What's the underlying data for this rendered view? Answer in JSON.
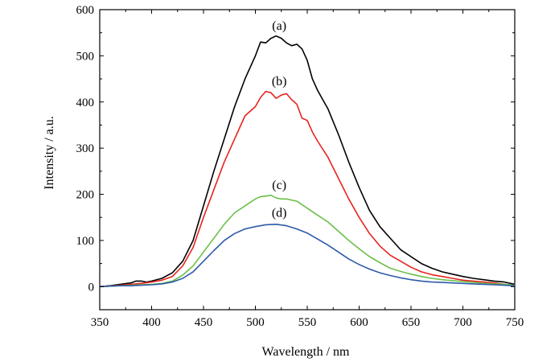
{
  "chart_data": {
    "type": "line",
    "title": "",
    "xlabel": "Wavelength / nm",
    "ylabel": "Intensity / a.u.",
    "xlim": [
      350,
      750
    ],
    "ylim": [
      -50,
      600
    ],
    "x_ticks": [
      350,
      400,
      450,
      500,
      550,
      600,
      650,
      700,
      750
    ],
    "y_ticks": [
      0,
      100,
      200,
      300,
      400,
      500,
      600
    ],
    "grid": false,
    "legend": "none",
    "annotations": [
      {
        "text": "(a)",
        "x": 523,
        "y": 565
      },
      {
        "text": "(b)",
        "x": 523,
        "y": 445
      },
      {
        "text": "(c)",
        "x": 523,
        "y": 220
      },
      {
        "text": "(d)",
        "x": 523,
        "y": 160
      }
    ],
    "series": [
      {
        "color": "#000000",
        "x": [
          350,
          360,
          370,
          380,
          385,
          390,
          395,
          400,
          410,
          420,
          430,
          440,
          450,
          460,
          470,
          480,
          490,
          500,
          505,
          510,
          515,
          520,
          525,
          530,
          535,
          540,
          545,
          550,
          555,
          560,
          565,
          570,
          580,
          590,
          600,
          610,
          620,
          630,
          640,
          650,
          660,
          670,
          680,
          690,
          700,
          710,
          720,
          730,
          740,
          750
        ],
        "y": [
          0,
          2,
          5,
          8,
          12,
          12,
          10,
          12,
          18,
          30,
          55,
          100,
          175,
          250,
          320,
          390,
          450,
          500,
          530,
          528,
          538,
          543,
          538,
          528,
          522,
          525,
          515,
          490,
          450,
          425,
          405,
          385,
          330,
          270,
          215,
          165,
          130,
          105,
          80,
          65,
          50,
          40,
          32,
          27,
          22,
          18,
          15,
          12,
          10,
          5
        ]
      },
      {
        "color": "#e8231e",
        "x": [
          350,
          360,
          370,
          380,
          390,
          400,
          410,
          420,
          430,
          440,
          450,
          460,
          470,
          480,
          490,
          500,
          505,
          510,
          515,
          520,
          525,
          530,
          535,
          540,
          545,
          550,
          555,
          560,
          570,
          580,
          590,
          600,
          610,
          620,
          630,
          640,
          650,
          660,
          670,
          680,
          690,
          700,
          710,
          720,
          730,
          740,
          750
        ],
        "y": [
          0,
          1,
          3,
          5,
          7,
          10,
          14,
          22,
          45,
          85,
          150,
          210,
          270,
          320,
          370,
          390,
          410,
          423,
          420,
          408,
          415,
          418,
          405,
          395,
          365,
          360,
          335,
          315,
          280,
          235,
          190,
          150,
          115,
          88,
          68,
          55,
          42,
          32,
          26,
          22,
          18,
          14,
          12,
          10,
          8,
          5,
          3
        ]
      },
      {
        "color": "#6dbf4b",
        "x": [
          350,
          360,
          370,
          380,
          390,
          400,
          410,
          420,
          430,
          440,
          450,
          460,
          470,
          480,
          490,
          500,
          505,
          510,
          515,
          520,
          525,
          530,
          540,
          550,
          560,
          570,
          580,
          590,
          600,
          610,
          620,
          630,
          640,
          650,
          660,
          670,
          680,
          690,
          700,
          710,
          720,
          730,
          740,
          750
        ],
        "y": [
          0,
          1,
          2,
          3,
          4,
          5,
          7,
          12,
          25,
          45,
          75,
          105,
          135,
          160,
          175,
          190,
          195,
          196,
          198,
          192,
          190,
          190,
          185,
          170,
          155,
          140,
          120,
          100,
          82,
          65,
          52,
          40,
          33,
          27,
          22,
          18,
          15,
          13,
          11,
          9,
          7,
          6,
          5,
          3
        ]
      },
      {
        "color": "#2c5aa8",
        "x": [
          350,
          360,
          370,
          380,
          390,
          400,
          410,
          420,
          430,
          440,
          450,
          460,
          470,
          480,
          490,
          500,
          510,
          520,
          530,
          540,
          550,
          560,
          570,
          580,
          590,
          600,
          610,
          620,
          630,
          640,
          650,
          660,
          670,
          680,
          690,
          700,
          710,
          720,
          730,
          740,
          750
        ],
        "y": [
          0,
          1,
          2,
          2,
          3,
          4,
          6,
          10,
          18,
          32,
          55,
          78,
          100,
          115,
          125,
          130,
          134,
          135,
          132,
          125,
          116,
          103,
          90,
          75,
          60,
          48,
          38,
          30,
          24,
          19,
          15,
          12,
          10,
          9,
          8,
          7,
          6,
          5,
          4,
          3,
          2
        ]
      }
    ]
  }
}
